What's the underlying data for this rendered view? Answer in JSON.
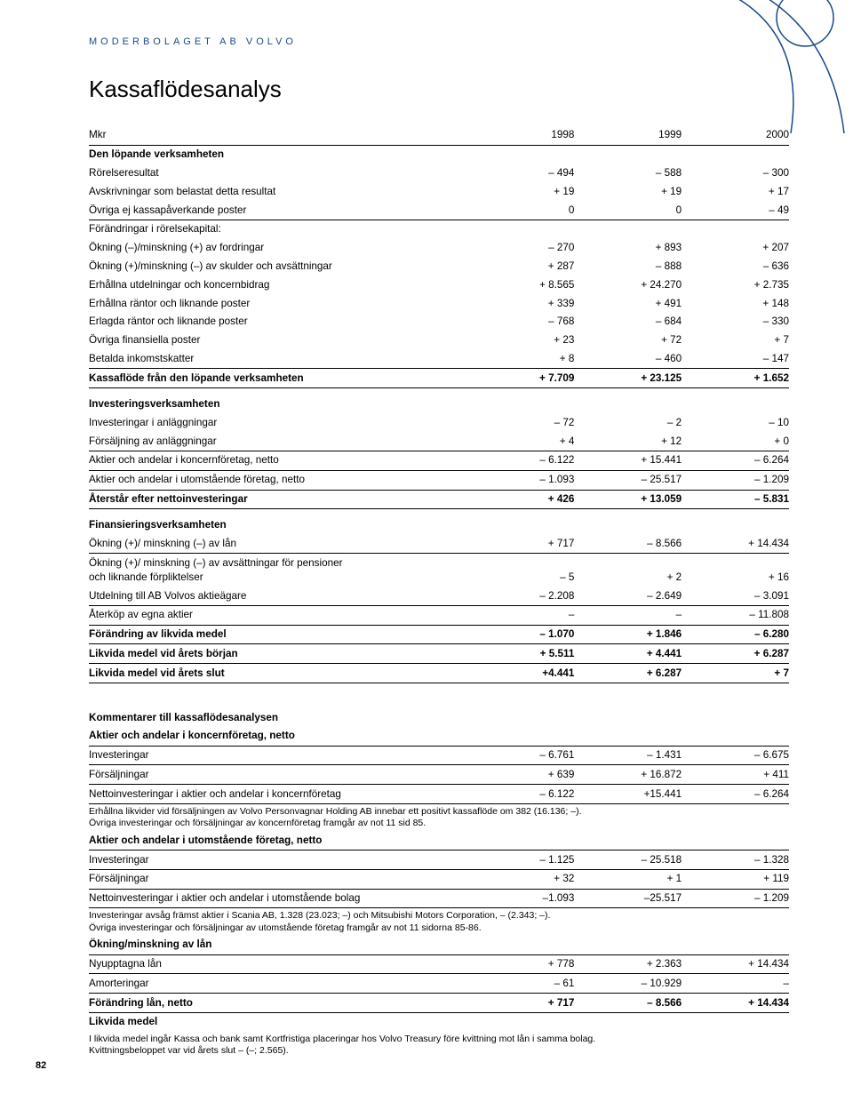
{
  "header": "MODERBOLAGET AB VOLVO",
  "title": "Kassaflödesanalys",
  "page_number": "82",
  "colors": {
    "brand": "#1a4a8a",
    "text": "#000000",
    "bg": "#ffffff",
    "rule": "#000000"
  },
  "typography": {
    "body_pt": 9,
    "title_pt": 20,
    "family": "Helvetica"
  },
  "cols": [
    "Mkr",
    "1998",
    "1999",
    "2000"
  ],
  "table1": [
    {
      "t": "hdr",
      "c": [
        "Mkr",
        "1998",
        "1999",
        "2000"
      ]
    },
    {
      "t": "bold",
      "c": [
        "Den löpande verksamheten",
        "",
        "",
        ""
      ]
    },
    {
      "c": [
        "Rörelseresultat",
        "– 494",
        "– 588",
        "– 300"
      ]
    },
    {
      "c": [
        "Avskrivningar som belastat detta resultat",
        "+ 19",
        "+ 19",
        "+ 17"
      ]
    },
    {
      "t": "line",
      "c": [
        "Övriga ej kassapåverkande poster",
        "0",
        "0",
        "– 49"
      ]
    },
    {
      "c": [
        "Förändringar i rörelsekapital:",
        "",
        "",
        ""
      ]
    },
    {
      "c": [
        "Ökning (–)/minskning (+) av fordringar",
        "– 270",
        "+ 893",
        "+ 207"
      ]
    },
    {
      "c": [
        "Ökning (+)/minskning (–) av skulder och avsättningar",
        "+ 287",
        "– 888",
        "– 636"
      ]
    },
    {
      "c": [
        "Erhållna utdelningar och koncernbidrag",
        "+ 8.565",
        "+ 24.270",
        "+ 2.735"
      ]
    },
    {
      "c": [
        "Erhållna räntor och liknande poster",
        "+ 339",
        "+ 491",
        "+ 148"
      ]
    },
    {
      "c": [
        "Erlagda räntor och liknande poster",
        "– 768",
        "– 684",
        "– 330"
      ]
    },
    {
      "c": [
        "Övriga finansiella poster",
        "+ 23",
        "+ 72",
        "+ 7"
      ]
    },
    {
      "t": "line",
      "c": [
        "Betalda inkomstskatter",
        "+ 8",
        "– 460",
        "– 147"
      ]
    },
    {
      "t": "bold line",
      "c": [
        "Kassaflöde från den löpande verksamheten",
        "+ 7.709",
        "+ 23.125",
        "+ 1.652"
      ]
    },
    {
      "t": "sect",
      "c": [
        "Investeringsverksamheten",
        "",
        "",
        ""
      ]
    },
    {
      "c": [
        "Investeringar i anläggningar",
        "– 72",
        "– 2",
        "– 10"
      ]
    },
    {
      "t": "line",
      "c": [
        "Försäljning av anläggningar",
        "+ 4",
        "+ 12",
        "+ 0"
      ]
    },
    {
      "t": "line",
      "c": [
        "Aktier och andelar i koncernföretag, netto",
        "– 6.122",
        "+ 15.441",
        "– 6.264"
      ]
    },
    {
      "t": "line",
      "c": [
        "Aktier och andelar i utomstående företag, netto",
        "– 1.093",
        "– 25.517",
        "– 1.209"
      ]
    },
    {
      "t": "bold line",
      "c": [
        "Återstår efter nettoinvesteringar",
        "+ 426",
        "+ 13.059",
        "– 5.831"
      ]
    },
    {
      "t": "sect",
      "c": [
        "Finansieringsverksamheten",
        "",
        "",
        ""
      ]
    },
    {
      "t": "line",
      "c": [
        "Ökning (+)/ minskning (–) av lån",
        "+ 717",
        "– 8.566",
        "+ 14.434"
      ]
    },
    {
      "c": [
        "Ökning (+)/ minskning (–) av avsättningar för pensioner\noch liknande förpliktelser",
        "– 5",
        "+ 2",
        "+ 16"
      ]
    },
    {
      "t": "line",
      "c": [
        "Utdelning till AB Volvos aktieägare",
        "– 2.208",
        "– 2.649",
        "– 3.091"
      ]
    },
    {
      "t": "line",
      "c": [
        "Återköp av egna aktier",
        "–",
        "–",
        "– 11.808"
      ]
    },
    {
      "t": "bold line",
      "c": [
        "Förändring av likvida medel",
        "– 1.070",
        "+ 1.846",
        "– 6.280"
      ]
    },
    {
      "t": "bold line",
      "c": [
        "Likvida medel vid årets början",
        "+ 5.511",
        "+ 4.441",
        "+ 6.287"
      ]
    },
    {
      "t": "bold line",
      "c": [
        "Likvida medel vid årets slut",
        "+4.441",
        "+ 6.287",
        "+ 7"
      ]
    }
  ],
  "table2": [
    {
      "t": "bold",
      "c": [
        "Kommentarer till kassaflödesanalysen",
        "",
        "",
        ""
      ]
    },
    {
      "t": "bold line",
      "c": [
        "Aktier och andelar i koncernföretag, netto",
        "",
        "",
        ""
      ]
    },
    {
      "t": "line",
      "c": [
        "Investeringar",
        "– 6.761",
        "– 1.431",
        "– 6.675"
      ]
    },
    {
      "t": "line",
      "c": [
        "Försäljningar",
        "+ 639",
        "+ 16.872",
        "+ 411"
      ]
    },
    {
      "t": "line",
      "c": [
        "Nettoinvesteringar i aktier och andelar i koncernföretag",
        "– 6.122",
        "+15.441",
        "– 6.264"
      ]
    },
    {
      "t": "note",
      "c": [
        "Erhållna likvider vid försäljningen av Volvo Personvagnar Holding AB innebar ett positivt kassaflöde om 382 (16.136; –).\nÖvriga investeringar och försäljningar av koncernföretag framgår av not 11 sid 85.",
        "",
        "",
        ""
      ]
    },
    {
      "t": "bold line",
      "c": [
        "Aktier och andelar i utomstående företag, netto",
        "",
        "",
        ""
      ]
    },
    {
      "t": "line",
      "c": [
        "Investeringar",
        "– 1.125",
        "– 25.518",
        "– 1.328"
      ]
    },
    {
      "t": "line",
      "c": [
        "Försäljningar",
        "+ 32",
        "+ 1",
        "+ 119"
      ]
    },
    {
      "t": "line",
      "c": [
        "Nettoinvesteringar i aktier och andelar i utomstående bolag",
        "–1.093",
        "–25.517",
        "– 1.209"
      ]
    },
    {
      "t": "note",
      "c": [
        "Investeringar avsåg främst aktier i Scania AB, 1.328 (23.023; –) och Mitsubishi Motors Corporation, – (2.343; –).\nÖvriga investeringar och försäljningar av utomstående företag framgår av not 11 sidorna 85-86.",
        "",
        "",
        ""
      ]
    },
    {
      "t": "bold line",
      "c": [
        "Ökning/minskning av lån",
        "",
        "",
        ""
      ]
    },
    {
      "t": "line",
      "c": [
        "Nyupptagna lån",
        "+ 778",
        "+ 2.363",
        "+ 14.434"
      ]
    },
    {
      "t": "line",
      "c": [
        "Amorteringar",
        "– 61",
        "– 10.929",
        "–"
      ]
    },
    {
      "t": "bold line",
      "c": [
        "Förändring lån, netto",
        "+ 717",
        "– 8.566",
        "+ 14.434"
      ]
    },
    {
      "t": "bold",
      "c": [
        "Likvida medel",
        "",
        "",
        ""
      ]
    },
    {
      "t": "note",
      "c": [
        "I likvida medel ingår Kassa och bank samt Kortfristiga placeringar hos Volvo Treasury före kvittning mot lån i samma bolag.\nKvittningsbeloppet var vid årets slut – (–; 2.565).",
        "",
        "",
        ""
      ]
    }
  ]
}
